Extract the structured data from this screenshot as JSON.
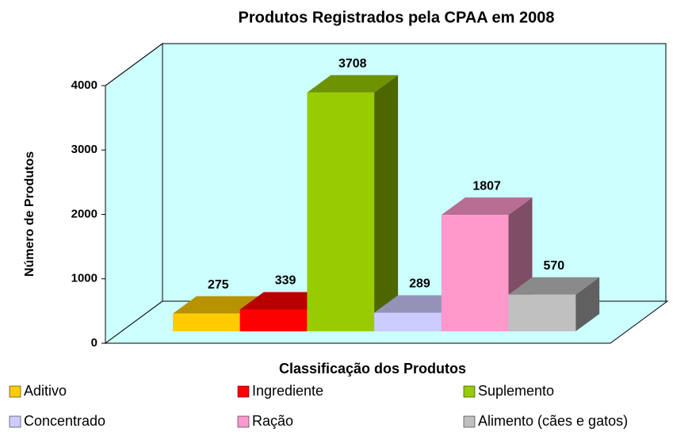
{
  "chart_data": {
    "type": "bar3d",
    "title": "Produtos Registrados pela CPAA em 2008",
    "xlabel": "Classificação dos Produtos",
    "ylabel": "Número de Produtos",
    "series": [
      {
        "name": "Aditivo",
        "color": "#ffcc00",
        "values": [
          275
        ]
      },
      {
        "name": "Ingrediente",
        "color": "#ff0000",
        "values": [
          339
        ]
      },
      {
        "name": "Suplemento",
        "color": "#99cc00",
        "values": [
          3708
        ]
      },
      {
        "name": "Concentrado",
        "color": "#ccccff",
        "values": [
          289
        ]
      },
      {
        "name": "Ração",
        "color": "#ff99cc",
        "values": [
          1807
        ]
      },
      {
        "name": "Alimento (cães e gatos)",
        "color": "#c0c0c0",
        "values": [
          570
        ]
      }
    ],
    "ylim": [
      0,
      4000
    ],
    "yticks": [
      0,
      1000,
      2000,
      3000,
      4000
    ],
    "grid": false
  }
}
